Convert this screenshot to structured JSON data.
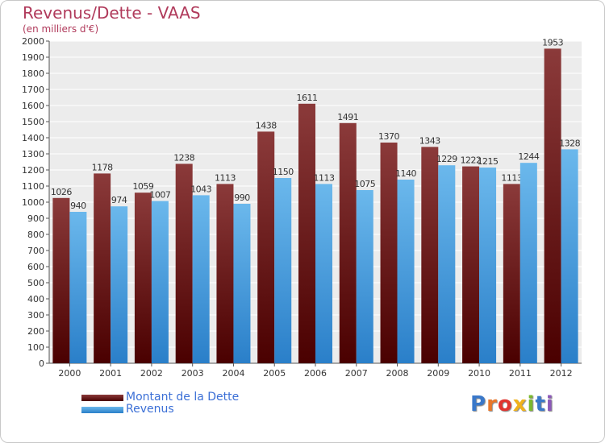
{
  "title": "Revenus/Dette - VAAS",
  "subtitle": "(en milliers d'€)",
  "legend": {
    "debt_label": "Montant de la Dette",
    "revenue_label": "Revenus"
  },
  "logo": "Proxiti",
  "colors": {
    "debt_top": "#8b3a3a",
    "debt_bottom": "#4a0000",
    "revenue_top": "#6bb8ec",
    "revenue_bottom": "#2a7fc9",
    "title": "#b03a5b",
    "legend_text": "#3b6fd6"
  },
  "chart_data": {
    "type": "bar",
    "categories": [
      "2000",
      "2001",
      "2002",
      "2003",
      "2004",
      "2005",
      "2006",
      "2007",
      "2008",
      "2009",
      "2010",
      "2011",
      "2012"
    ],
    "series": [
      {
        "name": "Montant de la Dette",
        "values": [
          1026,
          1178,
          1059,
          1238,
          1113,
          1438,
          1611,
          1491,
          1370,
          1343,
          1222,
          1113,
          1953
        ]
      },
      {
        "name": "Revenus",
        "values": [
          940,
          974,
          1007,
          1043,
          990,
          1150,
          1113,
          1075,
          1140,
          1229,
          1215,
          1244,
          1328
        ]
      }
    ],
    "ylim": [
      0,
      2000
    ],
    "ytick_step": 100,
    "grid": true,
    "legend_position": "bottom-left"
  }
}
